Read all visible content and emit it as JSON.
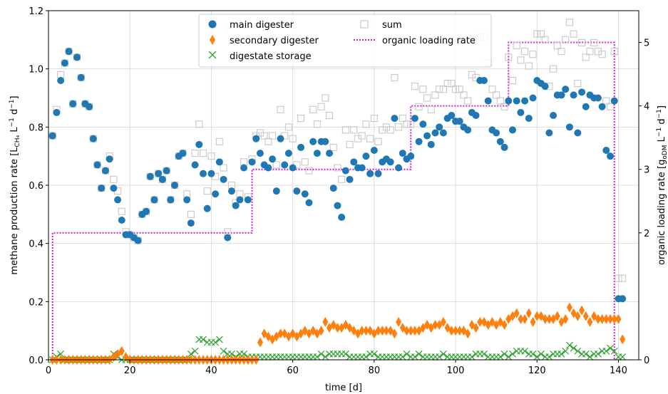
{
  "chart_data": {
    "type": "scatter",
    "xlabel": "time [d]",
    "ylabel_left": "methane production rate [L_CH4 L^-1 d^-1]",
    "ylabel_right": "organic loading rate [g_oDM L^-1 d^-1]",
    "xlim": [
      0,
      145
    ],
    "ylim_left": [
      0,
      1.2
    ],
    "ylim_right": [
      0,
      5.5
    ],
    "xticks": [
      "0",
      "20",
      "40",
      "60",
      "80",
      "100",
      "120",
      "140"
    ],
    "yticks_left": [
      "0.0",
      "0.2",
      "0.4",
      "0.6",
      "0.8",
      "1.0",
      "1.2"
    ],
    "yticks_right": [
      "0",
      "2",
      "3",
      "4",
      "5"
    ],
    "grid": true,
    "legend_position": "top-center",
    "colors": {
      "main": "#1f77b4",
      "secondary": "#ff7f0e",
      "storage": "#2ca02c",
      "sum": "#c8c8c8",
      "olr": "#cc22cc"
    },
    "series": [
      {
        "name": "main digester",
        "marker": "circle",
        "x": [
          1,
          2,
          3,
          4,
          5,
          6,
          7,
          8,
          9,
          10,
          11,
          12,
          13,
          14,
          15,
          16,
          17,
          18,
          19,
          20,
          21,
          22,
          23,
          24,
          25,
          26,
          27,
          28,
          29,
          30,
          31,
          32,
          33,
          34,
          35,
          36,
          37,
          38,
          39,
          40,
          41,
          42,
          43,
          44,
          45,
          46,
          47,
          48,
          49,
          50,
          51,
          52,
          53,
          54,
          55,
          56,
          57,
          58,
          59,
          60,
          61,
          62,
          63,
          64,
          65,
          66,
          67,
          68,
          69,
          70,
          71,
          72,
          73,
          74,
          75,
          76,
          77,
          78,
          79,
          80,
          81,
          82,
          83,
          84,
          85,
          86,
          87,
          88,
          89,
          90,
          91,
          92,
          93,
          94,
          95,
          96,
          97,
          98,
          99,
          100,
          101,
          102,
          103,
          104,
          105,
          106,
          107,
          108,
          109,
          110,
          111,
          112,
          113,
          114,
          115,
          116,
          117,
          118,
          119,
          120,
          121,
          122,
          123,
          124,
          125,
          126,
          127,
          128,
          129,
          130,
          131,
          132,
          133,
          134,
          135,
          136,
          137,
          138,
          139,
          140,
          141
        ],
        "y": [
          0.77,
          0.85,
          0.96,
          1.02,
          1.06,
          0.88,
          1.04,
          0.97,
          0.88,
          0.87,
          0.76,
          0.67,
          0.59,
          0.65,
          0.69,
          0.59,
          0.55,
          0.48,
          0.43,
          0.43,
          0.42,
          0.41,
          0.5,
          0.51,
          0.63,
          0.55,
          0.64,
          0.62,
          0.65,
          0.55,
          0.6,
          0.7,
          0.71,
          0.55,
          0.47,
          0.67,
          0.74,
          0.64,
          0.52,
          0.64,
          0.57,
          0.68,
          0.62,
          0.42,
          0.58,
          0.53,
          0.55,
          0.66,
          0.55,
          0.68,
          0.76,
          0.71,
          0.67,
          0.66,
          0.69,
          0.58,
          0.76,
          0.67,
          0.71,
          0.66,
          0.58,
          0.73,
          0.57,
          0.54,
          0.75,
          0.71,
          0.75,
          0.75,
          0.71,
          0.59,
          0.53,
          0.49,
          0.65,
          0.62,
          0.68,
          0.66,
          0.66,
          0.7,
          0.64,
          0.72,
          0.64,
          0.68,
          0.69,
          0.68,
          0.83,
          0.66,
          0.71,
          0.69,
          0.7,
          0.83,
          0.75,
          0.81,
          0.77,
          0.74,
          0.78,
          0.8,
          0.78,
          0.83,
          0.84,
          0.82,
          0.82,
          0.8,
          0.79,
          0.85,
          0.84,
          0.96,
          0.96,
          0.89,
          0.79,
          0.78,
          0.75,
          0.73,
          0.89,
          0.79,
          0.89,
          0.85,
          0.89,
          0.83,
          0.9,
          0.96,
          0.95,
          0.94,
          0.78,
          0.84,
          0.91,
          0.91,
          0.93,
          0.8,
          0.91,
          0.78,
          0.92,
          0.87,
          0.91,
          0.9,
          0.9,
          0.87,
          0.72,
          0.7,
          0.89,
          0.21,
          0.21
        ]
      },
      {
        "name": "secondary digester",
        "marker": "diamond",
        "x": [
          1,
          2,
          3,
          4,
          5,
          6,
          7,
          8,
          9,
          10,
          11,
          12,
          13,
          14,
          15,
          16,
          17,
          18,
          19,
          20,
          21,
          22,
          23,
          24,
          25,
          26,
          27,
          28,
          29,
          30,
          31,
          32,
          33,
          34,
          35,
          36,
          37,
          38,
          39,
          40,
          41,
          42,
          43,
          44,
          45,
          46,
          47,
          48,
          49,
          50,
          51,
          52,
          53,
          54,
          55,
          56,
          57,
          58,
          59,
          60,
          61,
          62,
          63,
          64,
          65,
          66,
          67,
          68,
          69,
          70,
          71,
          72,
          73,
          74,
          75,
          76,
          77,
          78,
          79,
          80,
          81,
          82,
          83,
          84,
          85,
          86,
          87,
          88,
          89,
          90,
          91,
          92,
          93,
          94,
          95,
          96,
          97,
          98,
          99,
          100,
          101,
          102,
          103,
          104,
          105,
          106,
          107,
          108,
          109,
          110,
          111,
          112,
          113,
          114,
          115,
          116,
          117,
          118,
          119,
          120,
          121,
          122,
          123,
          124,
          125,
          126,
          127,
          128,
          129,
          130,
          131,
          132,
          133,
          134,
          135,
          136,
          137,
          138,
          139,
          140,
          141
        ],
        "y": [
          0.0,
          0.0,
          0.0,
          0.0,
          0.0,
          0.0,
          0.0,
          0.0,
          0.0,
          0.0,
          0.0,
          0.0,
          0.0,
          0.0,
          0.0,
          0.01,
          0.02,
          0.03,
          0.01,
          0.0,
          0.0,
          0.0,
          0.0,
          0.0,
          0.0,
          0.0,
          0.0,
          0.0,
          0.0,
          0.0,
          0.0,
          0.0,
          0.0,
          0.0,
          0.0,
          0.0,
          0.0,
          0.0,
          0.0,
          0.0,
          0.0,
          0.0,
          0.0,
          0.0,
          0.0,
          0.0,
          0.0,
          0.0,
          0.0,
          0.0,
          0.0,
          0.06,
          0.09,
          0.08,
          0.07,
          0.08,
          0.09,
          0.09,
          0.08,
          0.09,
          0.08,
          0.09,
          0.1,
          0.09,
          0.1,
          0.09,
          0.1,
          0.13,
          0.11,
          0.12,
          0.11,
          0.11,
          0.12,
          0.11,
          0.1,
          0.09,
          0.1,
          0.1,
          0.1,
          0.09,
          0.1,
          0.1,
          0.1,
          0.1,
          0.09,
          0.13,
          0.11,
          0.1,
          0.1,
          0.1,
          0.1,
          0.11,
          0.12,
          0.11,
          0.12,
          0.12,
          0.13,
          0.11,
          0.1,
          0.1,
          0.1,
          0.1,
          0.09,
          0.12,
          0.11,
          0.13,
          0.13,
          0.12,
          0.13,
          0.12,
          0.13,
          0.12,
          0.14,
          0.15,
          0.16,
          0.14,
          0.14,
          0.16,
          0.13,
          0.15,
          0.15,
          0.14,
          0.14,
          0.14,
          0.15,
          0.13,
          0.14,
          0.18,
          0.16,
          0.15,
          0.17,
          0.15,
          0.13,
          0.15,
          0.14,
          0.14,
          0.14,
          0.14,
          0.14,
          0.14,
          0.07
        ]
      },
      {
        "name": "digestate storage",
        "marker": "x",
        "x": [
          1,
          2,
          3,
          4,
          5,
          6,
          7,
          8,
          9,
          10,
          11,
          12,
          13,
          14,
          15,
          16,
          17,
          18,
          19,
          20,
          21,
          22,
          23,
          24,
          25,
          26,
          27,
          28,
          29,
          30,
          31,
          32,
          33,
          34,
          35,
          36,
          37,
          38,
          39,
          40,
          41,
          42,
          43,
          44,
          45,
          46,
          47,
          48,
          49,
          50,
          51,
          52,
          53,
          54,
          55,
          56,
          57,
          58,
          59,
          60,
          61,
          62,
          63,
          64,
          65,
          66,
          67,
          68,
          69,
          70,
          71,
          72,
          73,
          74,
          75,
          76,
          77,
          78,
          79,
          80,
          81,
          82,
          83,
          84,
          85,
          86,
          87,
          88,
          89,
          90,
          91,
          92,
          93,
          94,
          95,
          96,
          97,
          98,
          99,
          100,
          101,
          102,
          103,
          104,
          105,
          106,
          107,
          108,
          109,
          110,
          111,
          112,
          113,
          114,
          115,
          116,
          117,
          118,
          119,
          120,
          121,
          122,
          123,
          124,
          125,
          126,
          127,
          128,
          129,
          130,
          131,
          132,
          133,
          134,
          135,
          136,
          137,
          138,
          139,
          140,
          141
        ],
        "y": [
          0.0,
          0.01,
          0.02,
          0.0,
          0.0,
          0.0,
          0.0,
          0.0,
          0.0,
          0.0,
          0.0,
          0.0,
          0.0,
          0.0,
          0.0,
          0.02,
          0.01,
          0.0,
          0.0,
          0.0,
          0.0,
          0.0,
          0.0,
          0.0,
          0.0,
          0.0,
          0.0,
          0.0,
          0.0,
          0.0,
          0.0,
          0.0,
          0.0,
          0.0,
          0.02,
          0.03,
          0.07,
          0.07,
          0.06,
          0.06,
          0.06,
          0.07,
          0.03,
          0.02,
          0.02,
          0.01,
          0.02,
          0.02,
          0.01,
          0.01,
          0.01,
          0.01,
          0.01,
          0.01,
          0.01,
          0.01,
          0.01,
          0.01,
          0.01,
          0.01,
          0.01,
          0.01,
          0.01,
          0.01,
          0.01,
          0.01,
          0.02,
          0.01,
          0.02,
          0.02,
          0.02,
          0.02,
          0.02,
          0.01,
          0.01,
          0.01,
          0.01,
          0.01,
          0.02,
          0.02,
          0.01,
          0.01,
          0.01,
          0.01,
          0.01,
          0.01,
          0.01,
          0.02,
          0.01,
          0.01,
          0.02,
          0.01,
          0.01,
          0.01,
          0.01,
          0.01,
          0.02,
          0.01,
          0.01,
          0.01,
          0.01,
          0.01,
          0.01,
          0.01,
          0.02,
          0.02,
          0.02,
          0.01,
          0.01,
          0.01,
          0.01,
          0.02,
          0.01,
          0.02,
          0.03,
          0.03,
          0.03,
          0.02,
          0.02,
          0.01,
          0.02,
          0.01,
          0.01,
          0.02,
          0.02,
          0.02,
          0.03,
          0.05,
          0.04,
          0.03,
          0.02,
          0.02,
          0.01,
          0.02,
          0.02,
          0.03,
          0.03,
          0.04,
          0.03,
          0.01,
          0.01
        ]
      },
      {
        "name": "sum",
        "marker": "square-open",
        "x": [
          1,
          2,
          3,
          4,
          5,
          6,
          7,
          8,
          9,
          10,
          11,
          12,
          13,
          14,
          15,
          16,
          17,
          18,
          19,
          20,
          21,
          22,
          23,
          24,
          25,
          26,
          27,
          28,
          29,
          30,
          31,
          32,
          33,
          34,
          35,
          36,
          37,
          38,
          39,
          40,
          41,
          42,
          43,
          44,
          45,
          46,
          47,
          48,
          49,
          50,
          51,
          52,
          53,
          54,
          55,
          56,
          57,
          58,
          59,
          60,
          61,
          62,
          63,
          64,
          65,
          66,
          67,
          68,
          69,
          70,
          71,
          72,
          73,
          74,
          75,
          76,
          77,
          78,
          79,
          80,
          81,
          82,
          83,
          84,
          85,
          86,
          87,
          88,
          89,
          90,
          91,
          92,
          93,
          94,
          95,
          96,
          97,
          98,
          99,
          100,
          101,
          102,
          103,
          104,
          105,
          106,
          107,
          108,
          109,
          110,
          111,
          112,
          113,
          114,
          115,
          116,
          117,
          118,
          119,
          120,
          121,
          122,
          123,
          124,
          125,
          126,
          127,
          128,
          129,
          130,
          131,
          132,
          133,
          134,
          135,
          136,
          137,
          138,
          139,
          140,
          141
        ],
        "y": [
          0.77,
          0.86,
          0.98,
          1.02,
          1.06,
          0.88,
          1.04,
          0.97,
          0.88,
          0.87,
          0.76,
          0.67,
          0.59,
          0.65,
          0.7,
          0.62,
          0.58,
          0.51,
          0.44,
          0.43,
          0.42,
          0.41,
          0.5,
          0.51,
          0.63,
          0.55,
          0.64,
          0.62,
          0.65,
          0.55,
          0.6,
          0.7,
          0.71,
          0.57,
          0.5,
          0.71,
          0.81,
          0.71,
          0.58,
          0.7,
          0.63,
          0.75,
          0.66,
          0.44,
          0.6,
          0.54,
          0.57,
          0.68,
          0.56,
          0.69,
          0.77,
          0.78,
          0.77,
          0.75,
          0.77,
          0.67,
          0.86,
          0.77,
          0.8,
          0.76,
          0.67,
          0.83,
          0.68,
          0.65,
          0.86,
          0.81,
          0.87,
          0.9,
          0.84,
          0.73,
          0.66,
          0.62,
          0.79,
          0.74,
          0.79,
          0.76,
          0.77,
          0.81,
          0.76,
          0.83,
          0.75,
          0.79,
          0.8,
          0.79,
          0.97,
          0.8,
          0.83,
          0.81,
          0.81,
          0.94,
          0.87,
          0.93,
          0.9,
          0.86,
          0.91,
          0.93,
          0.93,
          0.95,
          0.95,
          0.93,
          0.93,
          0.91,
          0.89,
          0.98,
          0.97,
          1.11,
          1.11,
          1.02,
          0.93,
          0.91,
          0.89,
          0.87,
          1.04,
          0.96,
          1.08,
          1.03,
          1.06,
          1.01,
          1.05,
          1.12,
          1.12,
          1.1,
          0.94,
          1.0,
          1.08,
          1.06,
          1.1,
          1.16,
          1.12,
          0.95,
          1.09,
          1.04,
          1.06,
          1.09,
          1.06,
          1.05,
          0.89,
          0.87,
          1.06,
          0.28,
          0.28
        ]
      },
      {
        "name": "organic loading rate",
        "marker": "dotted-step",
        "axis": "right",
        "x": [
          1,
          1,
          50,
          50,
          89,
          89,
          113,
          113,
          139,
          139
        ],
        "y": [
          0,
          2,
          2,
          3,
          3,
          4,
          4,
          5,
          5,
          0
        ]
      }
    ]
  }
}
